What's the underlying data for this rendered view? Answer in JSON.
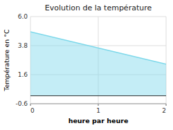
{
  "chart_data": {
    "type": "area",
    "title": "Evolution de la température",
    "xlabel": "heure par heure",
    "ylabel": "Température en °C",
    "x": [
      0,
      2
    ],
    "values": [
      4.85,
      2.4
    ],
    "color": "#7dd8ea",
    "xlim": [
      0,
      2
    ],
    "ylim": [
      -0.6,
      6.0
    ],
    "xticks": [
      0,
      1,
      2
    ],
    "yticks": [
      -0.6,
      1.6,
      3.8,
      {
        "value": 6.0,
        "label": "6.0"
      }
    ],
    "grid": true
  }
}
